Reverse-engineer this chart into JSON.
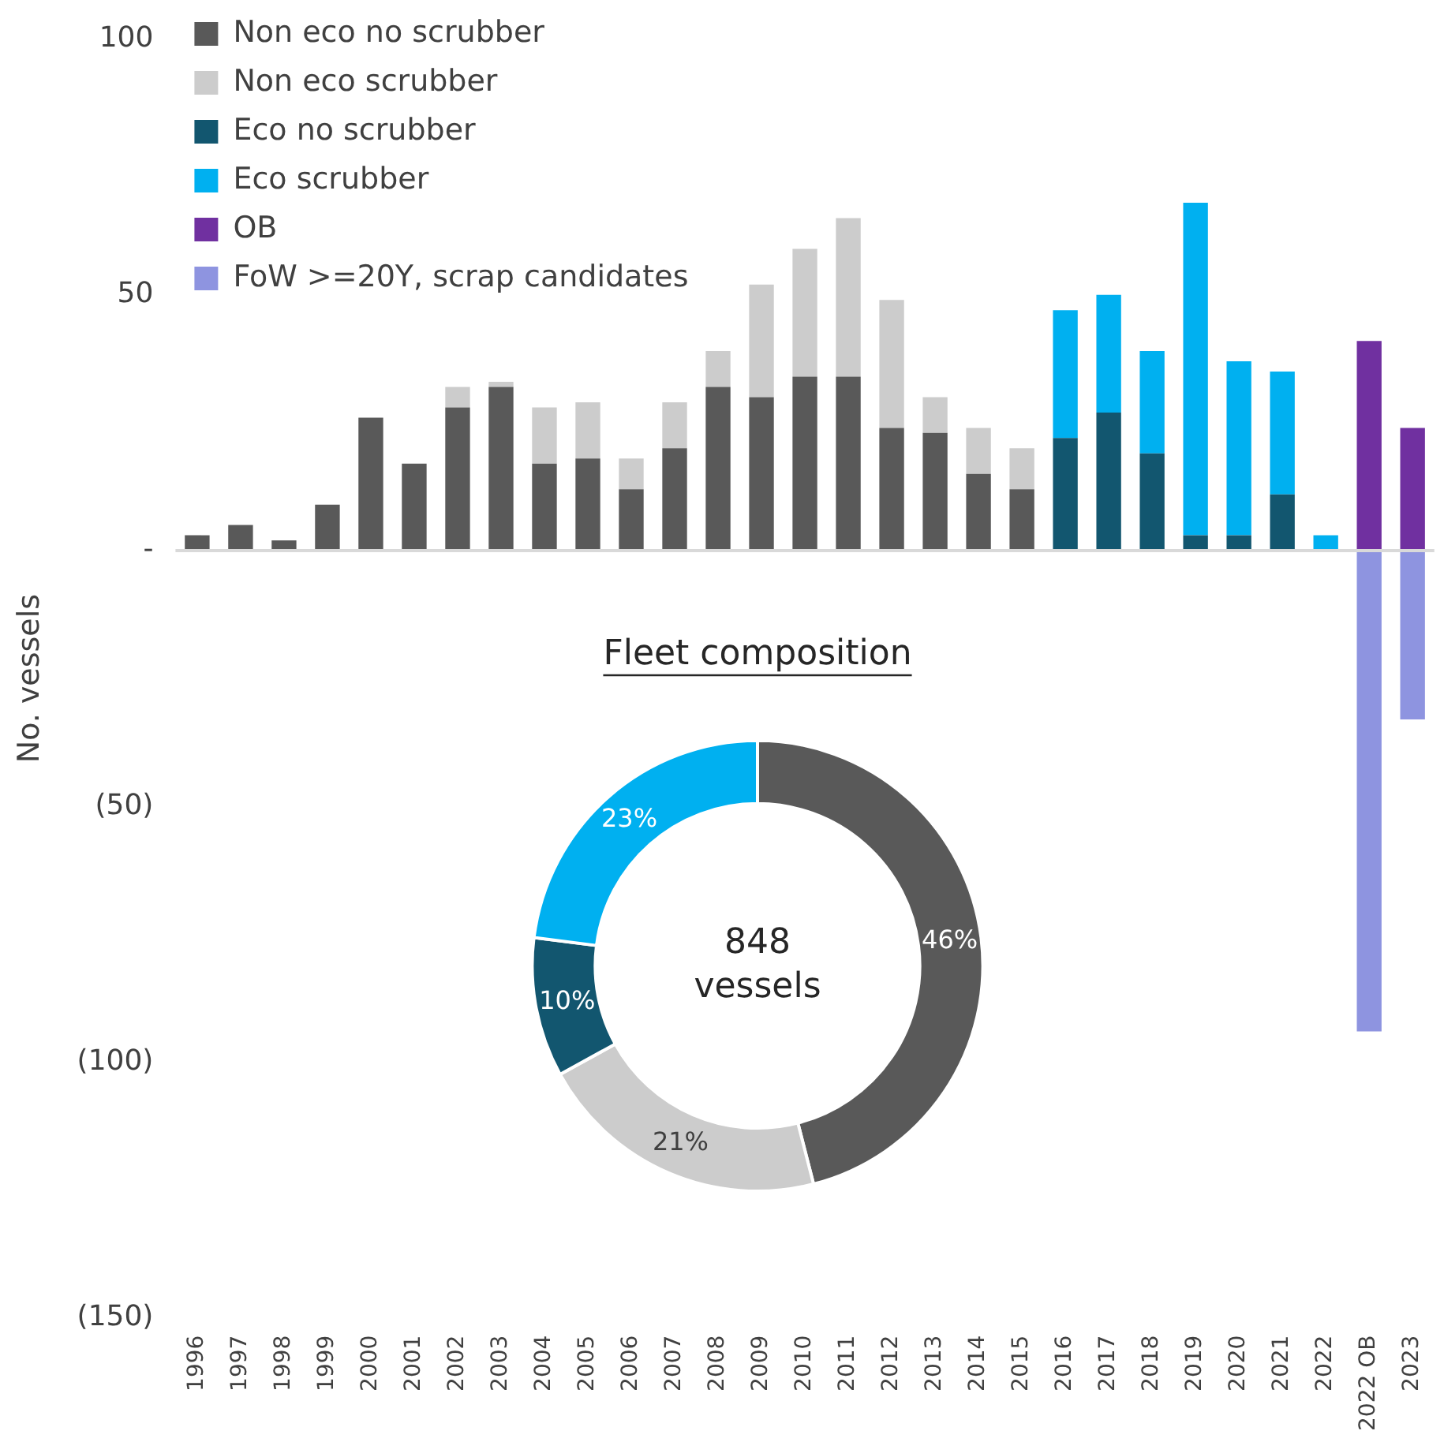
{
  "chart_data": [
    {
      "type": "bar",
      "stacked": true,
      "ylabel": "No. vessels",
      "categories": [
        "1996",
        "1997",
        "1998",
        "1999",
        "2000",
        "2001",
        "2002",
        "2003",
        "2004",
        "2005",
        "2006",
        "2007",
        "2008",
        "2009",
        "2010",
        "2011",
        "2012",
        "2013",
        "2014",
        "2015",
        "2016",
        "2017",
        "2018",
        "2019",
        "2020",
        "2021",
        "2022",
        "2022 OB",
        "2023"
      ],
      "series": [
        {
          "name": "Non eco no scrubber",
          "color": "#595959",
          "values": [
            3,
            5,
            2,
            9,
            26,
            17,
            28,
            32,
            17,
            18,
            12,
            20,
            32,
            30,
            34,
            34,
            24,
            23,
            15,
            12,
            null,
            null,
            null,
            null,
            null,
            null,
            null,
            null,
            null
          ]
        },
        {
          "name": "Non eco scrubber",
          "color": "#cccccc",
          "values": [
            null,
            null,
            null,
            null,
            null,
            null,
            4,
            1,
            11,
            11,
            6,
            9,
            7,
            22,
            25,
            31,
            25,
            7,
            9,
            8,
            null,
            null,
            null,
            null,
            null,
            null,
            null,
            null,
            null
          ]
        },
        {
          "name": "Eco no scrubber",
          "color": "#12566f",
          "values": [
            null,
            null,
            null,
            null,
            null,
            null,
            null,
            null,
            null,
            null,
            null,
            null,
            null,
            null,
            null,
            null,
            null,
            null,
            null,
            null,
            22,
            27,
            19,
            3,
            3,
            11,
            null,
            null,
            null
          ]
        },
        {
          "name": "Eco scrubber",
          "color": "#00b0f0",
          "values": [
            null,
            null,
            null,
            null,
            null,
            null,
            null,
            null,
            null,
            null,
            null,
            null,
            null,
            null,
            null,
            null,
            null,
            null,
            null,
            null,
            25,
            23,
            20,
            65,
            34,
            24,
            3,
            null,
            null
          ]
        },
        {
          "name": "OB",
          "color": "#7030a0",
          "values": [
            null,
            null,
            null,
            null,
            null,
            null,
            null,
            null,
            null,
            null,
            null,
            null,
            null,
            null,
            null,
            null,
            null,
            null,
            null,
            null,
            null,
            null,
            null,
            null,
            null,
            null,
            null,
            41,
            24
          ]
        },
        {
          "name": "FoW >=20Y, scrap candidates",
          "color": "#8e94e0",
          "values": [
            null,
            null,
            null,
            null,
            null,
            null,
            null,
            null,
            null,
            null,
            null,
            null,
            null,
            null,
            null,
            null,
            null,
            null,
            null,
            null,
            null,
            null,
            null,
            null,
            null,
            null,
            null,
            -94,
            -33
          ]
        }
      ],
      "ylim": [
        -150,
        100
      ],
      "yticks": [
        {
          "value": -150,
          "label": "(150)"
        },
        {
          "value": -100,
          "label": "(100)"
        },
        {
          "value": -50,
          "label": "(50)"
        },
        {
          "value": 0,
          "label": "-"
        },
        50,
        100
      ],
      "legend": "top left"
    },
    {
      "type": "donut",
      "title": "Fleet composition",
      "categories": [
        null,
        null,
        null,
        null
      ],
      "values": [
        46,
        21,
        10,
        23
      ],
      "colors": [
        "#595959",
        "#cccccc",
        "#12566f",
        "#00b0f0"
      ],
      "value_labels": [
        "46%",
        "21%",
        "10%",
        "23%"
      ],
      "annotations": [
        "848",
        "vessels"
      ],
      "legend": false
    }
  ]
}
